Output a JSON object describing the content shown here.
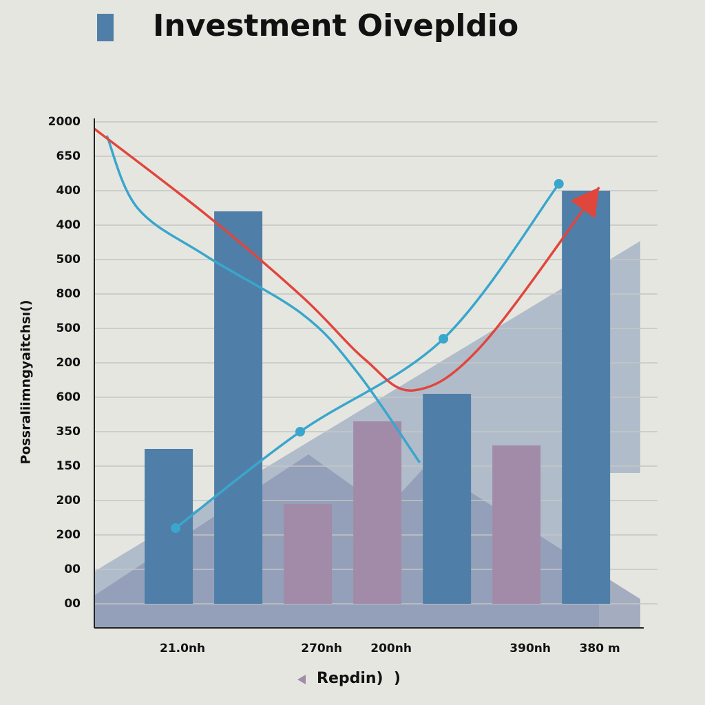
{
  "chart_data": {
    "type": "bar",
    "title": "Investment Oivepldio",
    "y_label": "Possraliimngyaitchsı()",
    "legend_label": "Repdin)  )",
    "categories": [
      "21.0nh",
      null,
      "270nh",
      "200nh",
      null,
      "390nh",
      "380 m"
    ],
    "values": [
      4.5,
      11.4,
      2.9,
      5.3,
      6.1,
      4.6,
      12.0
    ],
    "colors": [
      "#4f7fa8",
      "#4f7fa8",
      "#a28ba9",
      "#a28ba9",
      "#4f7fa8",
      "#a28ba9",
      "#4f7fa8"
    ],
    "ylim": [
      -0.7,
      14.1
    ],
    "yticks": [
      {
        "value": 0,
        "label": "00"
      },
      {
        "value": 1,
        "label": "00"
      },
      {
        "value": 2,
        "label": "200"
      },
      {
        "value": 3,
        "label": "200"
      },
      {
        "value": 4,
        "label": "150"
      },
      {
        "value": 5,
        "label": "350"
      },
      {
        "value": 6,
        "label": "600"
      },
      {
        "value": 7,
        "label": "200"
      },
      {
        "value": 8,
        "label": "500"
      },
      {
        "value": 9,
        "label": "800"
      },
      {
        "value": 10,
        "label": "500"
      },
      {
        "value": 11,
        "label": "400"
      },
      {
        "value": 12,
        "label": "400"
      },
      {
        "value": 13,
        "label": "650"
      },
      {
        "value": 14,
        "label": "2000"
      }
    ],
    "xlim": [
      -1.07,
      6.83
    ],
    "grid": true,
    "lines": [
      {
        "color": "#3aa6cc",
        "markers": false,
        "x": [
          -0.89,
          -0.45,
          0.54,
          1.93,
          2.72,
          3.61
        ],
        "values": [
          13.6,
          11.5,
          10.1,
          8.4,
          6.7,
          4.1
        ]
      },
      {
        "color": "#3aa6cc",
        "markers": true,
        "x": [
          0.1,
          1.89,
          3.95,
          5.61
        ],
        "values": [
          2.2,
          5.0,
          7.7,
          12.2
        ]
      },
      {
        "color": "#e0463c",
        "markers": false,
        "arrow": true,
        "x": [
          -1.07,
          0.54,
          1.93,
          2.82,
          3.52,
          4.5,
          6.19
        ],
        "values": [
          13.8,
          11.3,
          8.9,
          7.1,
          6.2,
          7.5,
          12.1
        ]
      }
    ]
  }
}
